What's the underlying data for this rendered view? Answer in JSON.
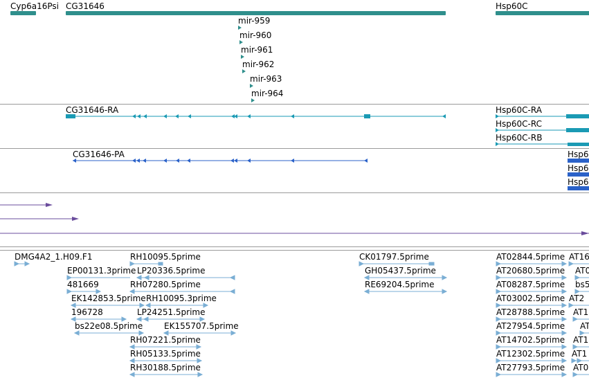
{
  "colors": {
    "gene": "#2f8f8c",
    "transcript": "#1a9ab4",
    "protein": "#2b62c9",
    "alignment": "#6a4c9c",
    "est": "#7aaed4",
    "separator": "#9a9a9a"
  },
  "genes": {
    "cyp": "Cyp6a16Psi",
    "cg": "CG31646",
    "hsp": "Hsp60C",
    "mirnas": [
      "mir-959",
      "mir-960",
      "mir-961",
      "mir-962",
      "mir-963",
      "mir-964"
    ]
  },
  "transcripts": [
    "CG31646-RA",
    "Hsp60C-RA",
    "Hsp60C-RC",
    "Hsp60C-RB"
  ],
  "proteins": [
    "CG31646-PA",
    "Hsp6",
    "Hsp6",
    "Hsp6"
  ],
  "ests": [
    "DMG4A2_1.H09.F1",
    "RH10095.5prime",
    "CK01797.5prime",
    "AT02844.5prime",
    "AT16",
    "EP00131.3prime",
    "LP20336.5prime",
    "GH05437.5prime",
    "AT20680.5prime",
    "AT0",
    "481669",
    "RH07280.5prime",
    "RE69204.5prime",
    "AT08287.5prime",
    "bs5",
    "EK142853.5prime",
    "RH10095.3prime",
    "AT03002.5prime",
    "AT2",
    "196728",
    "LP24251.5prime",
    "AT28788.5prime",
    "AT1",
    "bs22e08.5prime",
    "EK155707.5prime",
    "AT27954.5prime",
    "AT2",
    "RH07221.5prime",
    "AT14702.5prime",
    "AT1",
    "RH05133.5prime",
    "AT12302.5prime",
    "AT1",
    "RH30188.5prime",
    "AT27793.5prime",
    "AT0"
  ]
}
